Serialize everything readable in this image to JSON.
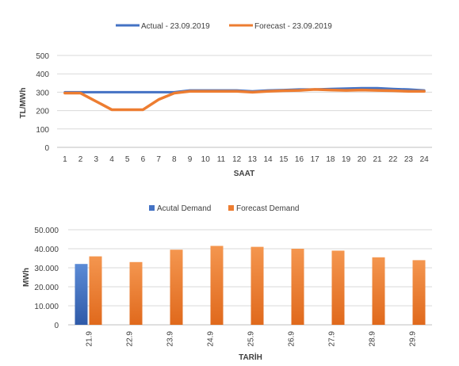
{
  "chart_data": [
    {
      "type": "line",
      "xlabel": "SAAT",
      "ylabel": "TL/MWh",
      "ylim": [
        0,
        500
      ],
      "yticks": [
        "0",
        "100",
        "200",
        "300",
        "400",
        "500"
      ],
      "categories": [
        "1",
        "2",
        "3",
        "4",
        "5",
        "6",
        "7",
        "8",
        "9",
        "10",
        "11",
        "12",
        "13",
        "14",
        "15",
        "16",
        "17",
        "18",
        "19",
        "20",
        "21",
        "22",
        "23",
        "24"
      ],
      "grid": true,
      "legend_position": "top",
      "series": [
        {
          "name": "Actual - 23.09.2019",
          "color": "#4472C4",
          "values": [
            300,
            300,
            300,
            300,
            300,
            300,
            300,
            300,
            310,
            310,
            310,
            310,
            305,
            310,
            312,
            315,
            315,
            318,
            320,
            322,
            322,
            318,
            315,
            310
          ]
        },
        {
          "name": "Forecast - 23.09.2019",
          "color": "#ED7D31",
          "values": [
            295,
            295,
            250,
            205,
            205,
            205,
            260,
            295,
            305,
            305,
            305,
            305,
            300,
            305,
            308,
            310,
            315,
            312,
            310,
            312,
            310,
            308,
            305,
            305
          ]
        }
      ]
    },
    {
      "type": "bar",
      "xlabel": "TARİH",
      "ylabel": "MWh",
      "ylim": [
        0,
        50000
      ],
      "yticks": [
        "0",
        "10.000",
        "20.000",
        "30.000",
        "40.000",
        "50.000"
      ],
      "categories": [
        "21.9",
        "22.9",
        "23.9",
        "24.9",
        "25.9",
        "26.9",
        "27.9",
        "28.9",
        "29.9"
      ],
      "grid": true,
      "legend_position": "top",
      "series": [
        {
          "name": "Acutal Demand",
          "color": "#4472C4",
          "values": [
            32000,
            null,
            null,
            null,
            null,
            null,
            null,
            null,
            null
          ]
        },
        {
          "name": "Forecast Demand",
          "color": "#ED7D31",
          "values": [
            36000,
            33000,
            39500,
            41500,
            41000,
            40000,
            39000,
            35500,
            34000
          ]
        }
      ]
    }
  ]
}
